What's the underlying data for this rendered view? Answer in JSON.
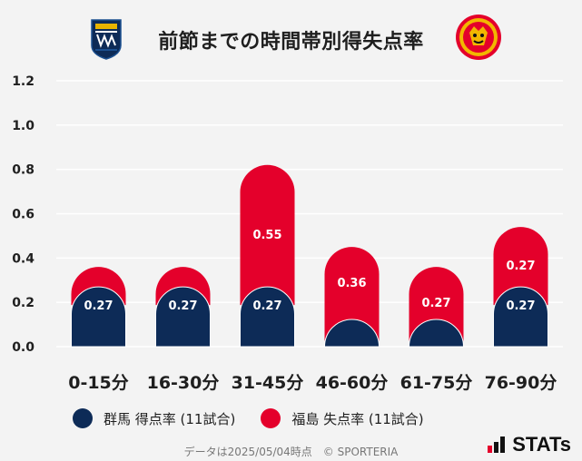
{
  "title": "前節までの時間帯別得失点率",
  "colors": {
    "gunma": "#0d2b57",
    "fukushima": "#e4002b",
    "grid": "#ffffff",
    "background": "#f3f3f3"
  },
  "legend": {
    "gunma": "群馬 得点率 (11試合)",
    "fukushima": "福島 失点率 (11試合)"
  },
  "footer": "データは2025/05/04時点　© SPORTERIA",
  "brand": "STATs",
  "emblem_left": {
    "text": "GUNMA",
    "icon": "thespakusatsu-gunma-crest"
  },
  "emblem_right": {
    "text": "FUKUSHIMA UNITED",
    "icon": "fukushima-united-crest"
  },
  "chart_data": {
    "type": "bar",
    "categories": [
      "0-15分",
      "16-30分",
      "31-45分",
      "46-60分",
      "61-75分",
      "76-90分"
    ],
    "series": [
      {
        "name": "群馬 得点率 (11試合)",
        "values": [
          0.27,
          0.27,
          0.27,
          0.09,
          0.09,
          0.27
        ],
        "labels": [
          "0.27",
          "0.27",
          "0.27",
          "",
          "",
          "0.27"
        ]
      },
      {
        "name": "福島 失点率 (11試合)",
        "values": [
          0.09,
          0.09,
          0.55,
          0.36,
          0.27,
          0.27
        ],
        "labels": [
          "",
          "",
          "0.55",
          "0.36",
          "0.27",
          "0.27"
        ]
      }
    ],
    "ylim": [
      0,
      1.2
    ],
    "yticks": [
      "0.0",
      "0.2",
      "0.4",
      "0.6",
      "0.8",
      "1.0",
      "1.2"
    ],
    "grid": true,
    "stacked": true
  }
}
